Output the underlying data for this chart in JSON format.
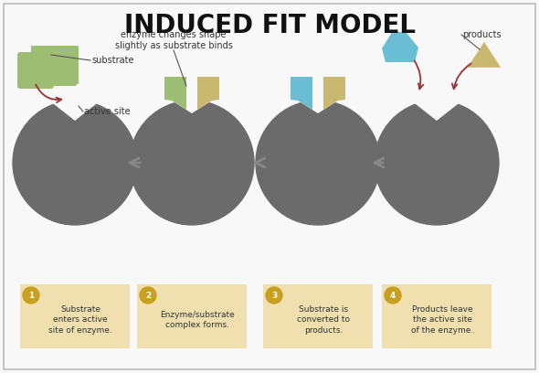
{
  "title": "INDUCED FIT MODEL",
  "title_fontsize": 20,
  "title_fontweight": "bold",
  "bg_color": "#f8f8f8",
  "border_color": "#bbbbbb",
  "enzyme_color": "#6b6b6b",
  "substrate1_color": "#9cbd72",
  "substrate2_color": "#c8b870",
  "product1_color": "#6bbdd4",
  "product2_color": "#c8b870",
  "label_bg_color": "#f0e0b0",
  "arrow_color": "#888888",
  "red_arrow_color": "#993333",
  "text_color": "#333333",
  "step_labels": [
    "Substrate\nenters active\nsite of enzyme.",
    "Enzyme/substrate\ncomplex forms.",
    "Substrate is\nconverted to\nproducts.",
    "Products leave\nthe active site\nof the enzyme."
  ],
  "step_numbers": [
    "1",
    "2",
    "3",
    "4"
  ],
  "num_circle_color": "#c8a020",
  "note_substrate": "substrate",
  "note_active": "active site",
  "note_enzyme_changes": "enzyme changes shape\nslightly as substrate binds",
  "note_products": "products"
}
